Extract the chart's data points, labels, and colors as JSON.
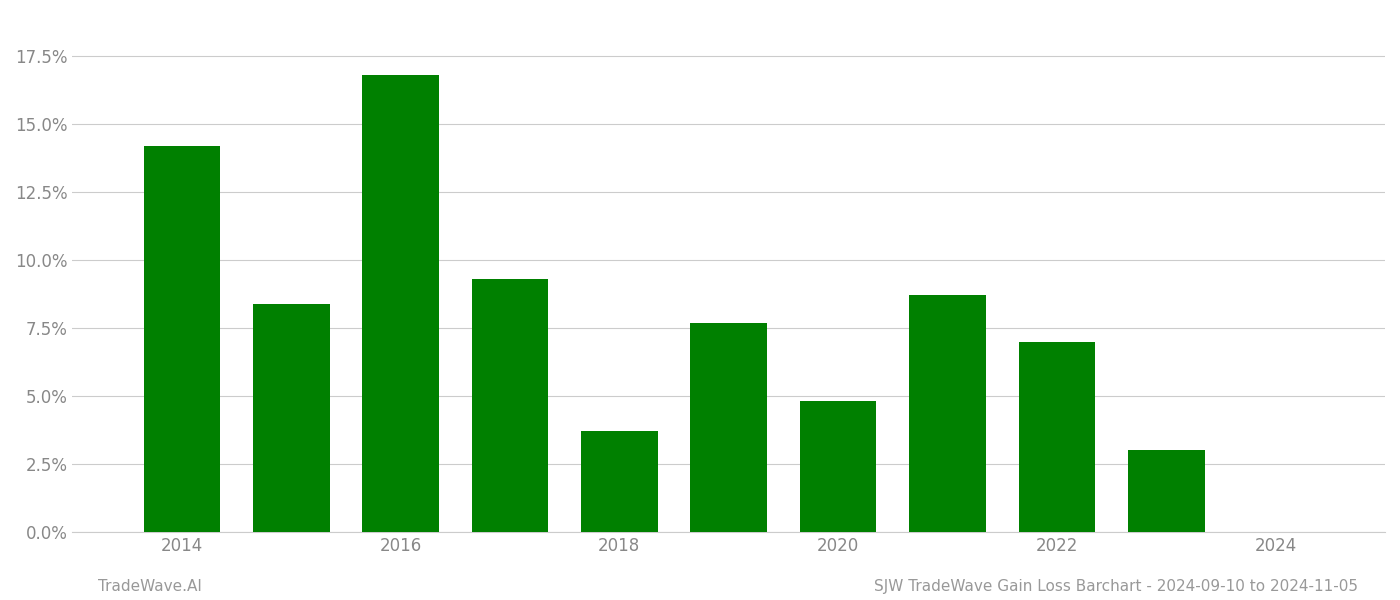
{
  "years": [
    2014,
    2015,
    2016,
    2017,
    2018,
    2019,
    2020,
    2021,
    2022,
    2023
  ],
  "values": [
    0.142,
    0.084,
    0.168,
    0.093,
    0.037,
    0.077,
    0.048,
    0.087,
    0.07,
    0.03
  ],
  "bar_color": "#008000",
  "background_color": "#ffffff",
  "grid_color": "#cccccc",
  "ylim": [
    0,
    0.19
  ],
  "yticks": [
    0.0,
    0.025,
    0.05,
    0.075,
    0.1,
    0.125,
    0.15,
    0.175
  ],
  "ytick_labels": [
    "0.0%",
    "2.5%",
    "5.0%",
    "7.5%",
    "10.0%",
    "12.5%",
    "15.0%",
    "17.5%"
  ],
  "xtick_positions": [
    2014,
    2016,
    2018,
    2020,
    2022,
    2024
  ],
  "xtick_labels": [
    "2014",
    "2016",
    "2018",
    "2020",
    "2022",
    "2024"
  ],
  "footer_left": "TradeWave.AI",
  "footer_right": "SJW TradeWave Gain Loss Barchart - 2024-09-10 to 2024-11-05",
  "footer_color": "#999999",
  "footer_fontsize": 11,
  "bar_width": 0.7,
  "xtick_fontsize": 12,
  "ytick_fontsize": 12,
  "fig_width": 14.0,
  "fig_height": 6.0,
  "dpi": 100,
  "xlim": [
    2013.0,
    2025.0
  ]
}
